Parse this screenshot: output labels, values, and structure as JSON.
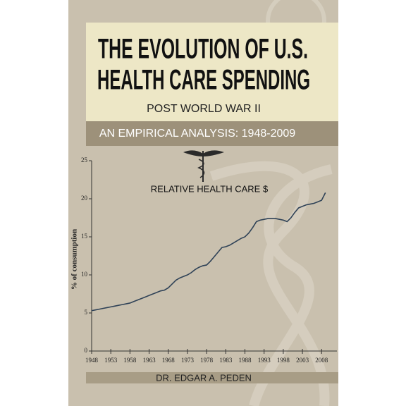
{
  "cover": {
    "title_lines": [
      "THE EVOLUTION OF U.S.",
      "HEALTH CARE SPENDING"
    ],
    "subtitle": "POST WORLD WAR II",
    "analysis": "AN EMPIRICAL ANALYSIS: 1948-2009",
    "author": "DR. EDGAR A. PEDEN"
  },
  "chart_data": {
    "type": "line",
    "title": "RELATIVE HEALTH CARE $",
    "y_label": "% of consumption",
    "x": [
      1948,
      1949,
      1950,
      1951,
      1952,
      1953,
      1954,
      1955,
      1956,
      1957,
      1958,
      1959,
      1960,
      1961,
      1962,
      1963,
      1964,
      1965,
      1966,
      1967,
      1968,
      1969,
      1970,
      1971,
      1972,
      1973,
      1974,
      1975,
      1976,
      1977,
      1978,
      1979,
      1980,
      1981,
      1982,
      1983,
      1984,
      1985,
      1986,
      1987,
      1988,
      1989,
      1990,
      1991,
      1992,
      1993,
      1994,
      1995,
      1996,
      1997,
      1998,
      1999,
      2000,
      2001,
      2002,
      2003,
      2004,
      2005,
      2006,
      2007,
      2008,
      2009
    ],
    "series": [
      {
        "color": "#2f4257",
        "values": [
          5.3,
          5.4,
          5.5,
          5.6,
          5.7,
          5.8,
          5.9,
          6.0,
          6.1,
          6.2,
          6.3,
          6.5,
          6.7,
          6.9,
          7.1,
          7.3,
          7.5,
          7.7,
          7.9,
          8.0,
          8.3,
          8.8,
          9.3,
          9.6,
          9.8,
          10.0,
          10.3,
          10.7,
          11.0,
          11.2,
          11.3,
          11.8,
          12.4,
          13.0,
          13.6,
          13.7,
          13.9,
          14.2,
          14.5,
          14.8,
          15.0,
          15.5,
          16.2,
          17.0,
          17.2,
          17.3,
          17.4,
          17.4,
          17.4,
          17.3,
          17.2,
          17.0,
          17.5,
          18.2,
          18.8,
          19.0,
          19.2,
          19.3,
          19.4,
          19.6,
          19.8,
          20.8
        ]
      }
    ],
    "xlim": [
      1948,
      2012
    ],
    "ylim": [
      0,
      25
    ],
    "xticks": [
      1948,
      1953,
      1958,
      1963,
      1968,
      1973,
      1978,
      1983,
      1988,
      1993,
      1998,
      2003,
      2008
    ],
    "yticks": [
      0,
      5,
      10,
      15,
      20,
      25
    ]
  }
}
